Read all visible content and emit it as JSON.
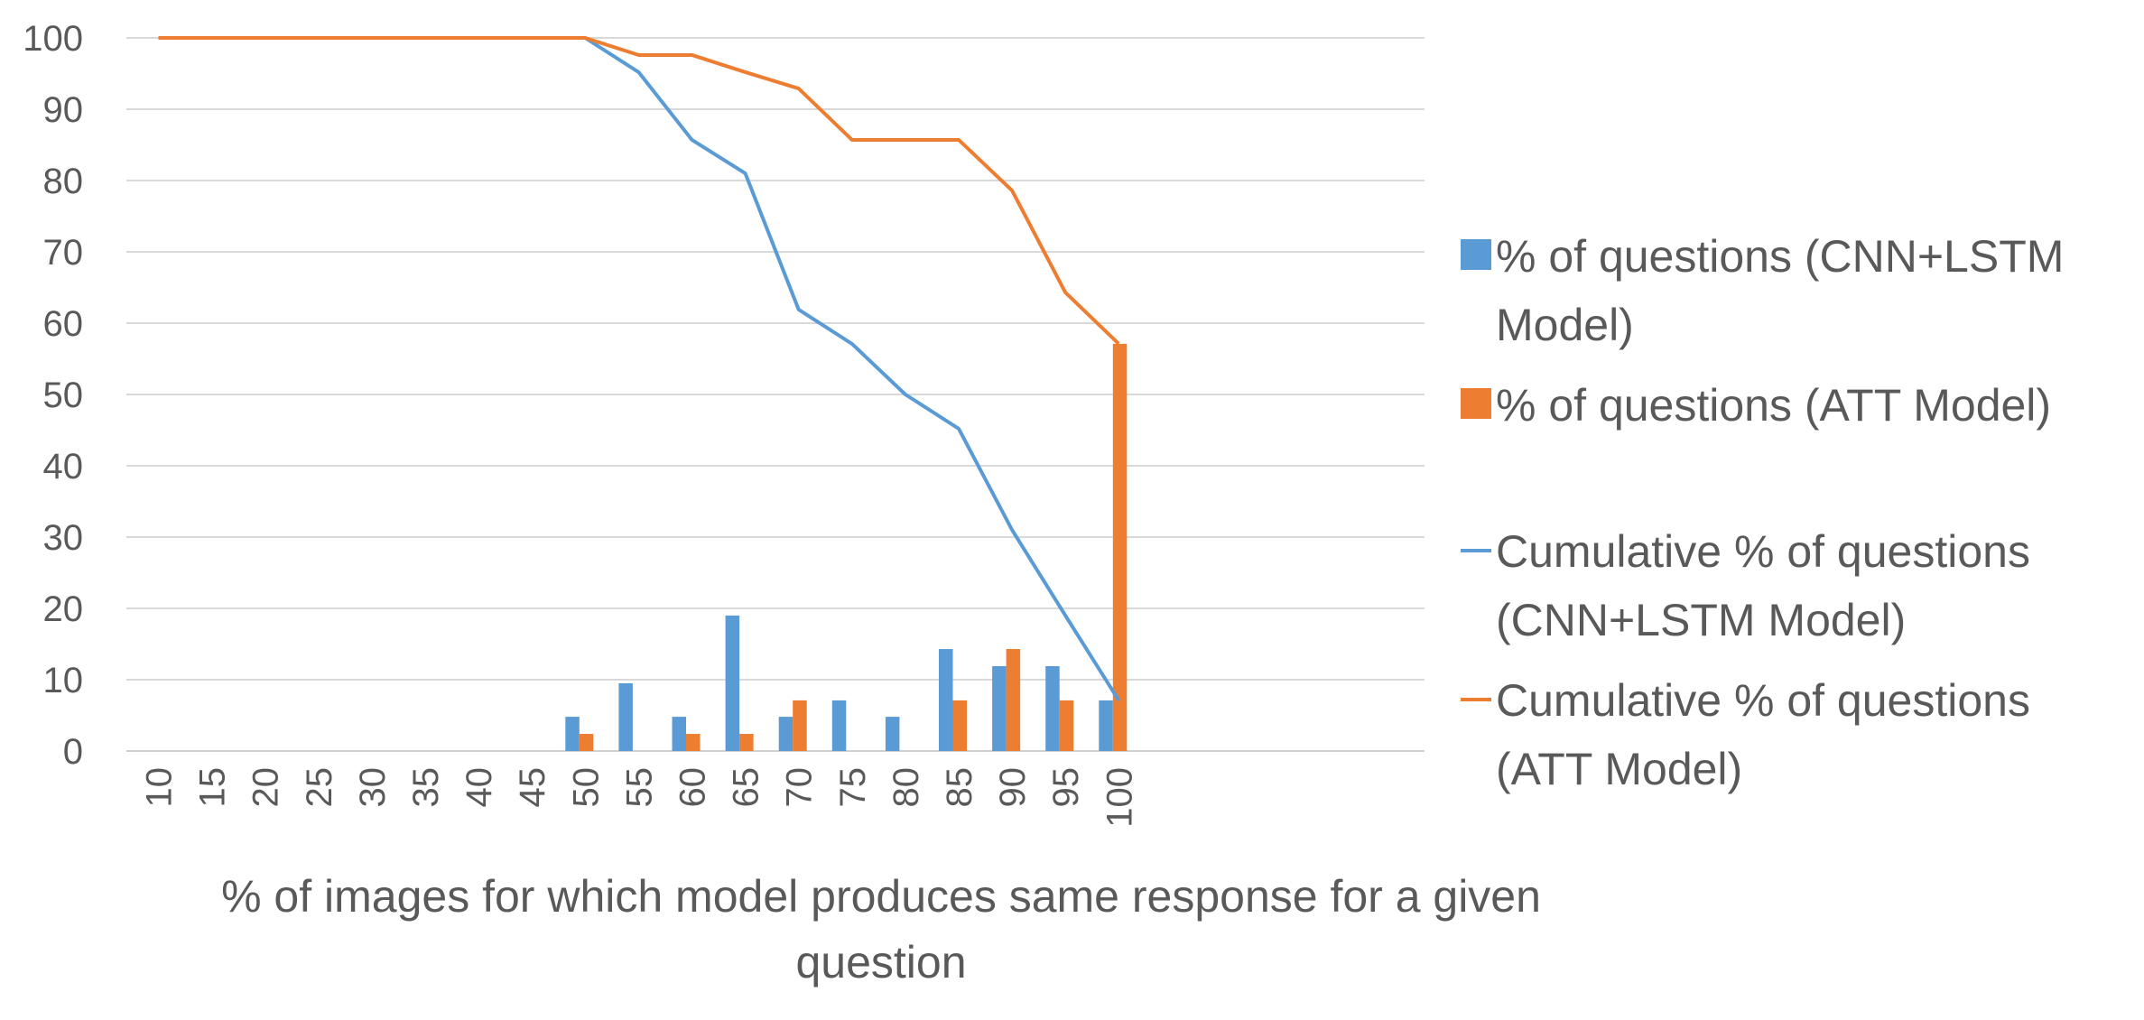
{
  "chart_data": {
    "type": "bar",
    "title": "",
    "xlabel": "% of images for which model produces same response for a given question",
    "ylabel": "",
    "ylim": [
      0,
      100
    ],
    "yticks": [
      0,
      10,
      20,
      30,
      40,
      50,
      60,
      70,
      80,
      90,
      100
    ],
    "grid": true,
    "legend_position": "right",
    "categories": [
      "10",
      "15",
      "20",
      "25",
      "30",
      "35",
      "40",
      "45",
      "50",
      "55",
      "60",
      "65",
      "70",
      "75",
      "80",
      "85",
      "90",
      "95",
      "100"
    ],
    "series": [
      {
        "name": "% of questions (CNN+LSTM Model)",
        "kind": "bar",
        "color": "#5B9BD5",
        "values": [
          0,
          0,
          0,
          0,
          0,
          0,
          0,
          0,
          4.8,
          9.5,
          4.8,
          19.0,
          4.8,
          7.1,
          4.8,
          14.3,
          11.9,
          11.9,
          7.1
        ]
      },
      {
        "name": "% of questions (ATT Model)",
        "kind": "bar",
        "color": "#ED7D31",
        "values": [
          0,
          0,
          0,
          0,
          0,
          0,
          0,
          0,
          2.4,
          0,
          2.4,
          2.4,
          7.1,
          0,
          0,
          7.1,
          14.3,
          7.1,
          57.1
        ]
      },
      {
        "name": "Cumulative % of questions (CNN+LSTM Model)",
        "kind": "line",
        "color": "#5B9BD5",
        "values": [
          100,
          100,
          100,
          100,
          100,
          100,
          100,
          100,
          100,
          95.2,
          85.7,
          81.0,
          61.9,
          57.1,
          50.0,
          45.2,
          31.0,
          19.0,
          7.1
        ]
      },
      {
        "name": "Cumulative % of questions (ATT Model)",
        "kind": "line",
        "color": "#ED7D31",
        "values": [
          100,
          100,
          100,
          100,
          100,
          100,
          100,
          100,
          100,
          97.6,
          97.6,
          95.2,
          92.9,
          85.7,
          85.7,
          85.7,
          78.6,
          64.3,
          57.1
        ]
      }
    ]
  },
  "legend": {
    "bar_cnn": [
      "% of questions (CNN+LSTM",
      "Model)"
    ],
    "bar_att": [
      "% of questions (ATT Model)"
    ],
    "line_cnn": [
      "Cumulative % of questions",
      "(CNN+LSTM Model)"
    ],
    "line_att": [
      "Cumulative % of questions",
      "(ATT Model)"
    ]
  },
  "xlabel_lines": [
    "% of images for which model produces same response for a given",
    "question"
  ]
}
